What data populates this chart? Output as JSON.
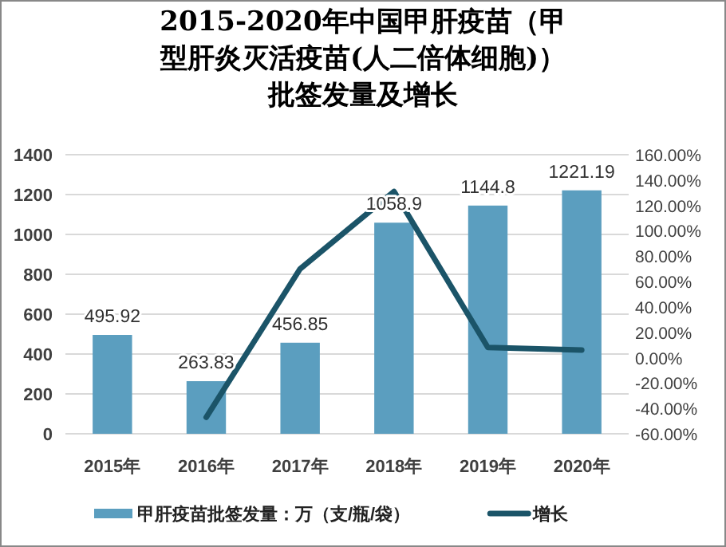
{
  "chart_data": {
    "type": "bar",
    "title": "2015-2020年中国甲肝疫苗（甲型肝炎灭活疫苗(人二倍体细胞)）批签发量及增长",
    "categories": [
      "2015年",
      "2016年",
      "2017年",
      "2018年",
      "2019年",
      "2020年"
    ],
    "series": [
      {
        "name": "甲肝疫苗批签发量：万（支/瓶/袋）",
        "color": "#5b9ebf",
        "values": [
          495.92,
          263.83,
          456.85,
          1058.9,
          1144.8,
          1221.19
        ],
        "value_labels": [
          "495.92",
          "263.83",
          "456.85",
          "1058.9",
          "1144.8",
          "1221.19"
        ]
      },
      {
        "name": "增长",
        "type": "line",
        "axis": "y2",
        "color": "#1b5468",
        "values": [
          null,
          -47,
          70,
          131,
          8,
          6
        ],
        "marker": "none",
        "line_style": "solid"
      }
    ],
    "ylim": [
      0,
      1400
    ],
    "yticks": [
      0,
      200,
      400,
      600,
      800,
      1000,
      1200,
      1400
    ],
    "y2lim": [
      -60,
      160
    ],
    "y2ticks": [
      {
        "value": -60,
        "label": "-60.00%"
      },
      {
        "value": -40,
        "label": "-40.00%"
      },
      {
        "value": -20,
        "label": "-20.00%"
      },
      {
        "value": 0,
        "label": "0.00%"
      },
      {
        "value": 20,
        "label": "20.00%"
      },
      {
        "value": 40,
        "label": "40.00%"
      },
      {
        "value": 60,
        "label": "60.00%"
      },
      {
        "value": 80,
        "label": "80.00%"
      },
      {
        "value": 100,
        "label": "100.00%"
      },
      {
        "value": 120,
        "label": "120.00%"
      },
      {
        "value": 140,
        "label": "140.00%"
      },
      {
        "value": 160,
        "label": "160.00%"
      }
    ],
    "grid": "y",
    "legend": "bottom"
  }
}
